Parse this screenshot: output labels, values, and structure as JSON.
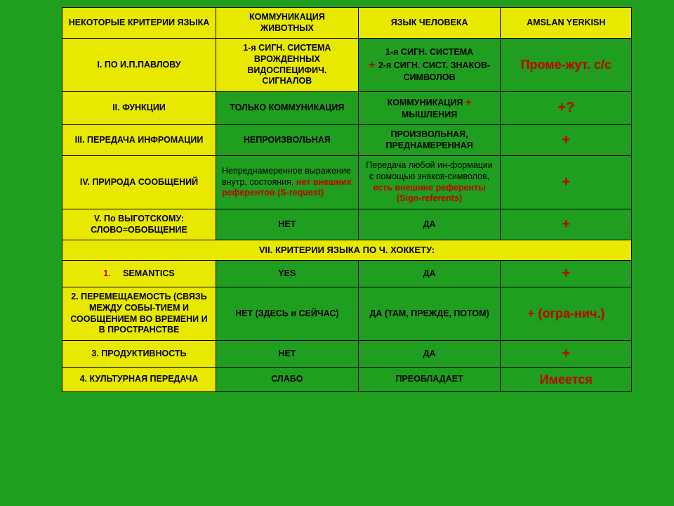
{
  "colors": {
    "bg": "#1f9e1f",
    "yellow": "#e8e800",
    "red": "#c00000",
    "black": "#000000"
  },
  "header": {
    "c1": "НЕКОТОРЫЕ КРИТЕРИИ ЯЗЫКА",
    "c2": "КОММУНИКАЦИЯ ЖИВОТНЫХ",
    "c3": "ЯЗЫК ЧЕЛОВЕКА",
    "c4": "AMSLAN YERKISH"
  },
  "r1": {
    "label": "I. ПО И.П.ПАВЛОВУ",
    "animal": "1-я СИГН. СИСТЕМА ВРОЖДЕННЫХ ВИДОСПЕЦИФИЧ. СИГНАЛОВ",
    "human_a": "1-я СИГН. СИСТЕМА ",
    "human_plus": "+ ",
    "human_b": "2-я СИГН. СИСТ. ЗНАКОВ-СИМВОЛОВ",
    "ams": "Проме-жут. с/с"
  },
  "r2": {
    "label": "II. ФУНКЦИИ",
    "animal": "ТОЛЬКО КОММУНИКАЦИЯ",
    "human_a": "КОММУНИКАЦИЯ ",
    "human_plus": "+",
    "human_b": " МЫШЛЕНИЯ",
    "ams": "+?"
  },
  "r3": {
    "label": "III. ПЕРЕДАЧА ИНФРОМАЦИИ",
    "animal": "НЕПРОИЗВОЛЬНАЯ",
    "human": "ПРОИЗВОЛЬНАЯ, ПРЕДНАМЕРЕННАЯ",
    "ams": "+"
  },
  "r4": {
    "label": "IV. ПРИРОДА СООБЩЕНИЙ",
    "animal_a": "Непреднамеренное выражение внутр. состояния, ",
    "animal_red": "нет внешних референтов (S-request)",
    "human_a": "Передача любой ин-формации с помощью знаков-символов, ",
    "human_red": "есть внешние референты (Sign-referents)",
    "ams": "+"
  },
  "r5": {
    "label": "V. По ВЫГОТСКОМУ: СЛОВО=ОБОБЩЕНИЕ",
    "animal": "НЕТ",
    "human": "ДА",
    "ams": "+"
  },
  "section": "VII. КРИТЕРИИ ЯЗЫКА ПО Ч. ХОККЕТУ:",
  "r7": {
    "num": "1.",
    "label": "SEMANTICS",
    "animal": "YES",
    "human": "ДА",
    "ams": "+"
  },
  "r8": {
    "label": "2. ПЕРЕМЕЩАЕМОСТЬ (СВЯЗЬ МЕЖДУ СОБЫ-ТИЕМ И СООБЩЕНИЕМ ВО ВРЕМЕНИ И В ПРОСТРАНСТВЕ",
    "animal": "НЕТ (ЗДЕСЬ и СЕЙЧАС)",
    "human": "ДА (ТАМ, ПРЕЖДЕ, ПОТОМ)",
    "ams": "+ (огра-нич.)"
  },
  "r9": {
    "label": "3. ПРОДУКТИВНОСТЬ",
    "animal": "НЕТ",
    "human": "ДА",
    "ams": "+"
  },
  "r10": {
    "label": "4. КУЛЬТУРНАЯ ПЕРЕДАЧА",
    "animal": "СЛАБО",
    "human": "ПРЕОБЛАДАЕТ",
    "ams": "Имеется"
  }
}
